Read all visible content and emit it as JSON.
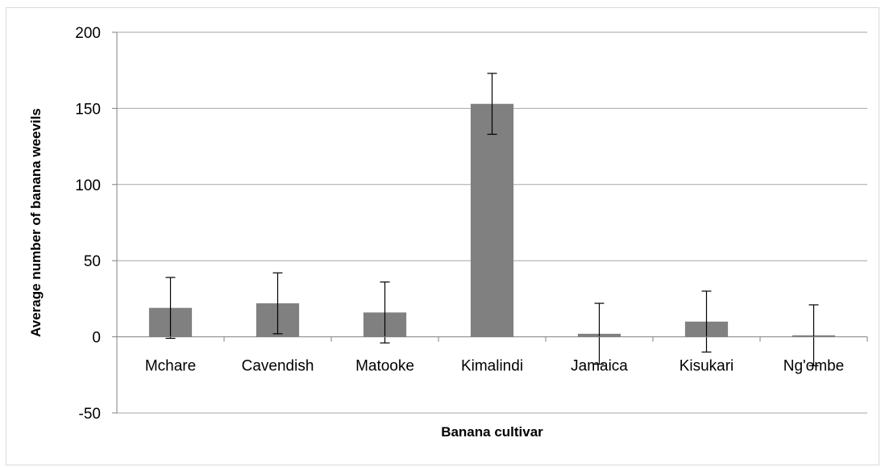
{
  "chart_data": {
    "type": "bar",
    "title": "",
    "xlabel": "Banana cultivar",
    "ylabel": "Average number of banana weevils",
    "categories": [
      "Mchare",
      "Cavendish",
      "Matooke",
      "Kimalindi",
      "Jamaica",
      "Kisukari",
      "Ng'ombe"
    ],
    "series": [
      {
        "values": [
          19,
          22,
          16,
          153,
          2,
          10,
          1
        ],
        "error": [
          20,
          20,
          20,
          20,
          20,
          20,
          20
        ]
      }
    ],
    "ylim": [
      -50,
      200
    ],
    "yticks": [
      -50,
      0,
      50,
      100,
      150,
      200
    ],
    "ytick_labels": [
      "-50",
      "0",
      "50",
      "100",
      "150",
      "200"
    ],
    "grid": true,
    "legend": "none",
    "colors": {
      "bar": "#808080",
      "grid": "#a6a6a6",
      "axis": "#808080",
      "error_bar": "#000000"
    }
  }
}
